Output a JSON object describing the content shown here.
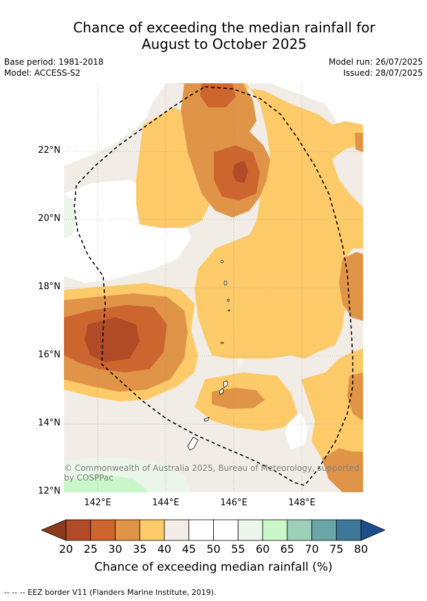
{
  "title_line1": "Chance of exceeding the median rainfall for",
  "title_line2": "August to October 2025",
  "base_period": "Base period: 1981-2018",
  "model": "Model: ACCESS-S2",
  "model_run": "Model run: 26/07/2025",
  "issued": "Issued: 28/07/2025",
  "lat_labels": [
    "22°N",
    "20°N",
    "18°N",
    "16°N",
    "14°N",
    "12°N"
  ],
  "lon_labels": [
    "142°E",
    "144°E",
    "146°E",
    "148°E"
  ],
  "copyright": "© Commonwealth of Australia 2025, Bureau of Meteorology, supported by COSPPac",
  "colorbar": {
    "ticks": [
      "20",
      "25",
      "30",
      "35",
      "40",
      "45",
      "50",
      "55",
      "60",
      "65",
      "70",
      "75",
      "80"
    ],
    "label": "Chance of exceeding median rainfall (%)",
    "colors": [
      "#8c3a1e",
      "#b14a26",
      "#cd652f",
      "#e09448",
      "#fdca6a",
      "#f1ede6",
      "#ffffff",
      "#ffffff",
      "#ebf5e9",
      "#caf7c7",
      "#9dd0b8",
      "#6aa6a7",
      "#3e7898",
      "#1b4f8b"
    ]
  },
  "footer": "--  --  -- EEZ border V11 (Flanders Marine Institute, 2019)."
}
